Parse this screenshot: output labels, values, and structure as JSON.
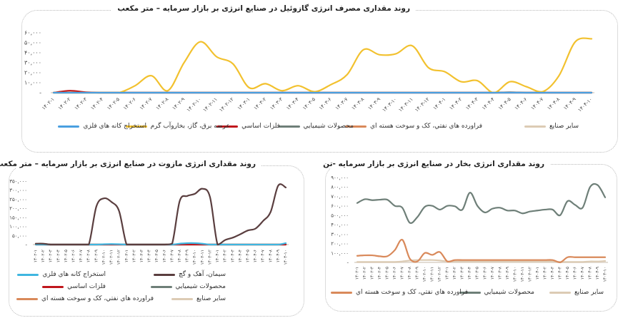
{
  "chart_data": [
    {
      "type": "line",
      "title": "روند مقداری مصرف انرژی گازوئیل در صنایع انرژی بر بازار سرمایه – متر مکعب",
      "x": [
        "۱۴۰۲-۱",
        "۱۴۰۲-۲",
        "۱۴۰۲-۳",
        "۱۴۰۲-۴",
        "۱۴۰۲-۵",
        "۱۴۰۲-۶",
        "۱۴۰۲-۷",
        "۱۴۰۲-۸",
        "۱۴۰۲-۹",
        "۱۴۰۲-۱۰",
        "۱۴۰۲-۱۱",
        "۱۴۰۲-۱۲",
        "۱۴۰۳-۱",
        "۱۴۰۳-۲",
        "۱۴۰۳-۳",
        "۱۴۰۳-۴",
        "۱۴۰۳-۵",
        "۱۴۰۳-۶",
        "۱۴۰۳-۷",
        "۱۴۰۳-۸",
        "۱۴۰۳-۹",
        "۱۴۰۳-۱۰",
        "۱۴۰۳-۱۱",
        "۱۴۰۳-۱۲",
        "۱۴۰۴-۱",
        "۱۴۰۴-۲",
        "۱۴۰۴-۳",
        "۱۴۰۴-۴",
        "۱۴۰۴-۵",
        "۱۴۰۴-۶",
        "۱۴۰۴-۷",
        "۱۴۰۴-۸",
        "۱۴۰۴-۹",
        "۱۴۰۴-۱۰"
      ],
      "ylim": [
        0,
        60000
      ],
      "yticks": [
        0,
        10000,
        20000,
        30000,
        40000,
        50000,
        60000
      ],
      "ytick_labels": [
        "-",
        "۱۰,۰۰۰",
        "۲۰,۰۰۰",
        "۳۰,۰۰۰",
        "۴۰,۰۰۰",
        "۵۰,۰۰۰",
        "۶۰,۰۰۰"
      ],
      "legend_position": "bottom",
      "grid": false,
      "series": [
        {
          "name": "سایر صنایع",
          "color": "#dccbb4",
          "values": [
            300,
            300,
            300,
            300,
            300,
            300,
            300,
            300,
            300,
            300,
            300,
            300,
            300,
            300,
            300,
            300,
            300,
            300,
            300,
            300,
            300,
            300,
            300,
            300,
            300,
            300,
            300,
            300,
            300,
            300,
            300,
            300,
            300,
            300
          ]
        },
        {
          "name": "فراورده هاي نفتي، كک و سوخت هسته اي",
          "color": "#d9895a",
          "values": [
            0,
            0,
            0,
            0,
            0,
            0,
            0,
            0,
            0,
            0,
            0,
            0,
            0,
            0,
            0,
            0,
            0,
            0,
            0,
            0,
            0,
            0,
            0,
            0,
            0,
            0,
            0,
            0,
            0,
            0,
            0,
            0,
            0,
            0
          ]
        },
        {
          "name": "محصولات شيميايي",
          "color": "#6e7f78",
          "values": [
            0,
            0,
            0,
            0,
            0,
            0,
            0,
            0,
            0,
            0,
            0,
            0,
            0,
            0,
            0,
            0,
            0,
            0,
            0,
            0,
            0,
            0,
            0,
            0,
            0,
            0,
            0,
            0,
            500,
            0,
            0,
            0,
            0,
            0
          ]
        },
        {
          "name": "فلزات اساسي",
          "color": "#c0161c",
          "values": [
            0,
            2000,
            500,
            0,
            0,
            0,
            0,
            0,
            0,
            0,
            0,
            0,
            0,
            0,
            0,
            0,
            0,
            0,
            0,
            0,
            0,
            0,
            0,
            0,
            0,
            0,
            0,
            0,
            0,
            0,
            0,
            0,
            0,
            0
          ]
        },
        {
          "name": "عرضه برق، گاز، بخاروآب گرم",
          "color": "#f2c12e",
          "values": [
            0,
            0,
            0,
            0,
            0,
            7000,
            17000,
            2000,
            30000,
            51000,
            36000,
            29000,
            5000,
            9000,
            2000,
            7000,
            1000,
            8000,
            18000,
            43000,
            38000,
            39000,
            47000,
            25000,
            21000,
            11000,
            12000,
            0,
            11000,
            6000,
            1000,
            17000,
            51000,
            54000
          ]
        },
        {
          "name": "استخراج کانه هاي فلزي",
          "color": "#4a9fe0",
          "values": [
            0,
            0,
            0,
            0,
            0,
            0,
            0,
            0,
            0,
            0,
            0,
            0,
            0,
            0,
            0,
            0,
            0,
            0,
            0,
            0,
            0,
            0,
            0,
            0,
            0,
            0,
            0,
            0,
            0,
            0,
            0,
            0,
            0,
            0
          ]
        }
      ]
    },
    {
      "type": "line",
      "title": "روند مقداری انرژی مازوت  در صنایع انرژی بر بازار سرمایه – متر مکعب",
      "x": [
        "۱۴۰۲-۱",
        "۱۴۰۲-۲",
        "۱۴۰۲-۳",
        "۱۴۰۲-۴",
        "۱۴۰۲-۵",
        "۱۴۰۲-۶",
        "۱۴۰۲-۷",
        "۱۴۰۲-۸",
        "۱۴۰۲-۹",
        "۱۴۰۲-۱۰",
        "۱۴۰۲-۱۱",
        "۱۴۰۲-۱۲",
        "۱۴۰۳-۱",
        "۱۴۰۳-۲",
        "۱۴۰۳-۳",
        "۱۴۰۳-۴",
        "۱۴۰۳-۵",
        "۱۴۰۳-۶",
        "۱۴۰۳-۷",
        "۱۴۰۳-۸",
        "۱۴۰۳-۹",
        "۱۴۰۳-۱۰",
        "۱۴۰۳-۱۱",
        "۱۴۰۳-۱۲",
        "۱۴۰۴-۱",
        "۱۴۰۴-۲",
        "۱۴۰۴-۳",
        "۱۴۰۴-۴",
        "۱۴۰۴-۵",
        "۱۴۰۴-۶",
        "۱۴۰۴-۷",
        "۱۴۰۴-۸",
        "۱۴۰۴-۹",
        "۱۴۰۴-۱۰"
      ],
      "ylim": [
        0,
        350000
      ],
      "yticks": [
        0,
        50000,
        100000,
        150000,
        200000,
        250000,
        300000,
        350000
      ],
      "ytick_labels": [
        "-",
        "۵۰,۰۰۰",
        "۱۰۰,۰۰۰",
        "۱۵۰,۰۰۰",
        "۲۰۰,۰۰۰",
        "۲۵۰,۰۰۰",
        "۳۰۰,۰۰۰",
        "۳۵۰,۰۰۰"
      ],
      "legend_position": "bottom",
      "grid": false,
      "series": [
        {
          "name": "سایر صنایع",
          "color": "#dccbb4",
          "values": [
            1000,
            1000,
            1000,
            1000,
            1000,
            1000,
            1000,
            1000,
            1000,
            1000,
            1000,
            1000,
            1000,
            1000,
            1000,
            1000,
            1000,
            1000,
            1000,
            1000,
            1000,
            1000,
            1000,
            1000,
            1000,
            1000,
            1000,
            1000,
            1000,
            1000,
            1000,
            1000,
            1000,
            1000
          ]
        },
        {
          "name": "فراورده هاي نفتي، كک و سوخت هسته اي",
          "color": "#d9895a",
          "values": [
            0,
            0,
            0,
            0,
            0,
            0,
            0,
            0,
            0,
            0,
            0,
            0,
            0,
            0,
            0,
            0,
            0,
            0,
            0,
            0,
            0,
            0,
            0,
            0,
            0,
            0,
            0,
            0,
            0,
            0,
            0,
            0,
            0,
            0
          ]
        },
        {
          "name": "محصولات شيميايي",
          "color": "#6e7f78",
          "values": [
            0,
            0,
            0,
            0,
            0,
            0,
            0,
            0,
            0,
            0,
            0,
            0,
            0,
            0,
            0,
            0,
            0,
            0,
            0,
            0,
            0,
            0,
            0,
            0,
            0,
            0,
            0,
            0,
            0,
            0,
            0,
            0,
            0,
            0
          ]
        },
        {
          "name": "فلزات اساسي",
          "color": "#c0161c",
          "values": [
            0,
            0,
            0,
            0,
            0,
            0,
            0,
            0,
            0,
            0,
            0,
            0,
            0,
            0,
            0,
            0,
            0,
            0,
            0,
            0,
            0,
            0,
            0,
            0,
            0,
            0,
            0,
            0,
            0,
            0,
            0,
            0,
            0,
            0
          ]
        },
        {
          "name": "استخراج کانه هاي فلزي",
          "color": "#3fb6e0",
          "values": [
            0,
            0,
            0,
            0,
            0,
            0,
            0,
            0,
            0,
            2000,
            3000,
            2000,
            0,
            0,
            0,
            0,
            0,
            0,
            0,
            5000,
            8000,
            8000,
            5000,
            0,
            0,
            0,
            0,
            0,
            0,
            0,
            0,
            0,
            0,
            8000
          ]
        },
        {
          "name": "سیمان، آهک و گچ",
          "color": "#5a3e3f",
          "values": [
            5000,
            5000,
            0,
            0,
            0,
            0,
            0,
            0,
            210000,
            255000,
            235000,
            185000,
            0,
            0,
            0,
            0,
            0,
            0,
            5000,
            240000,
            268000,
            280000,
            308000,
            262000,
            0,
            25000,
            38000,
            57000,
            78000,
            88000,
            130000,
            180000,
            325000,
            315000
          ]
        }
      ]
    },
    {
      "type": "line",
      "title": "روند مقداری انرژی بخار در صنایع انرژی بر بازار سرمایه -تن",
      "x": [
        "۱۴۰۲-۱",
        "۱۴۰۲-۲",
        "۱۴۰۲-۳",
        "۱۴۰۲-۴",
        "۱۴۰۲-۵",
        "۱۴۰۲-۶",
        "۱۴۰۲-۷",
        "۱۴۰۲-۸",
        "۱۴۰۲-۹",
        "۱۴۰۲-۱۰",
        "۱۴۰۲-۱۱",
        "۱۴۰۲-۱۲",
        "۱۴۰۳-۱",
        "۱۴۰۳-۲",
        "۱۴۰۳-۳",
        "۱۴۰۳-۴",
        "۱۴۰۳-۵",
        "۱۴۰۳-۶",
        "۱۴۰۳-۷",
        "۱۴۰۳-۸",
        "۱۴۰۳-۹",
        "۱۴۰۳-۱۰",
        "۱۴۰۳-۱۱",
        "۱۴۰۳-۱۲",
        "۱۴۰۴-۱",
        "۱۴۰۴-۲",
        "۱۴۰۴-۳",
        "۱۴۰۴-۴",
        "۱۴۰۴-۵",
        "۱۴۰۴-۶",
        "۱۴۰۴-۷",
        "۱۴۰۴-۸",
        "۱۴۰۴-۹",
        "۱۴۰۴-۱۰"
      ],
      "ylim": [
        0,
        900000
      ],
      "yticks": [
        0,
        100000,
        200000,
        300000,
        400000,
        500000,
        600000,
        700000,
        800000,
        900000
      ],
      "ytick_labels": [
        "-",
        "۱۰۰,۰۰۰",
        "۲۰۰,۰۰۰",
        "۳۰۰,۰۰۰",
        "۴۰۰,۰۰۰",
        "۵۰۰,۰۰۰",
        "۶۰۰,۰۰۰",
        "۷۰۰,۰۰۰",
        "۸۰۰,۰۰۰",
        "۹۰۰,۰۰۰"
      ],
      "legend_position": "bottom",
      "grid": false,
      "series": [
        {
          "name": "سایر صنایع",
          "color": "#dccbb4",
          "values": [
            5000,
            5000,
            5000,
            5000,
            5000,
            5000,
            10000,
            20000,
            25000,
            25000,
            25000,
            20000,
            10000,
            10000,
            10000,
            10000,
            10000,
            10000,
            10000,
            10000,
            10000,
            10000,
            10000,
            10000,
            10000,
            10000,
            10000,
            5000,
            5000,
            5000,
            5000,
            10000,
            10000,
            15000
          ]
        },
        {
          "name": "محصولات شيميايي",
          "color": "#6e7f78",
          "values": [
            630000,
            670000,
            660000,
            665000,
            665000,
            600000,
            580000,
            420000,
            480000,
            590000,
            600000,
            560000,
            600000,
            595000,
            560000,
            740000,
            600000,
            530000,
            570000,
            580000,
            550000,
            550000,
            520000,
            540000,
            550000,
            560000,
            560000,
            500000,
            650000,
            610000,
            580000,
            800000,
            820000,
            690000
          ]
        },
        {
          "name": "فراورده هاي نفتي، كک و سوخت هسته اي",
          "color": "#d9895a",
          "values": [
            70000,
            75000,
            75000,
            65000,
            65000,
            130000,
            240000,
            40000,
            10000,
            100000,
            80000,
            110000,
            10000,
            25000,
            25000,
            25000,
            25000,
            25000,
            25000,
            25000,
            25000,
            25000,
            25000,
            25000,
            25000,
            25000,
            25000,
            0,
            55000,
            55000,
            55000,
            55000,
            55000,
            55000
          ]
        }
      ]
    }
  ]
}
